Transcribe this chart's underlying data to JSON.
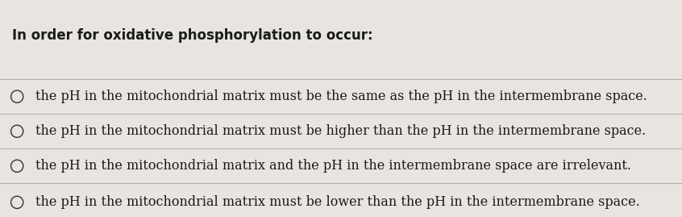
{
  "title": "In order for oxidative phosphorylation to occur:",
  "options": [
    "the pH in the mitochondrial matrix must be the same as the pH in the intermembrane space.",
    "the pH in the mitochondrial matrix must be higher than the pH in the intermembrane space.",
    "the pH in the mitochondrial matrix and the pH in the intermembrane space are irrelevant.",
    "the pH in the mitochondrial matrix must be lower than the pH in the intermembrane space."
  ],
  "background_color": "#e8e5e0",
  "text_color": "#1a1a1a",
  "title_fontsize": 12,
  "option_fontsize": 11.5,
  "figsize": [
    8.46,
    2.69
  ],
  "dpi": 100,
  "line_color": "#b0aca8",
  "circle_color": "#333333"
}
